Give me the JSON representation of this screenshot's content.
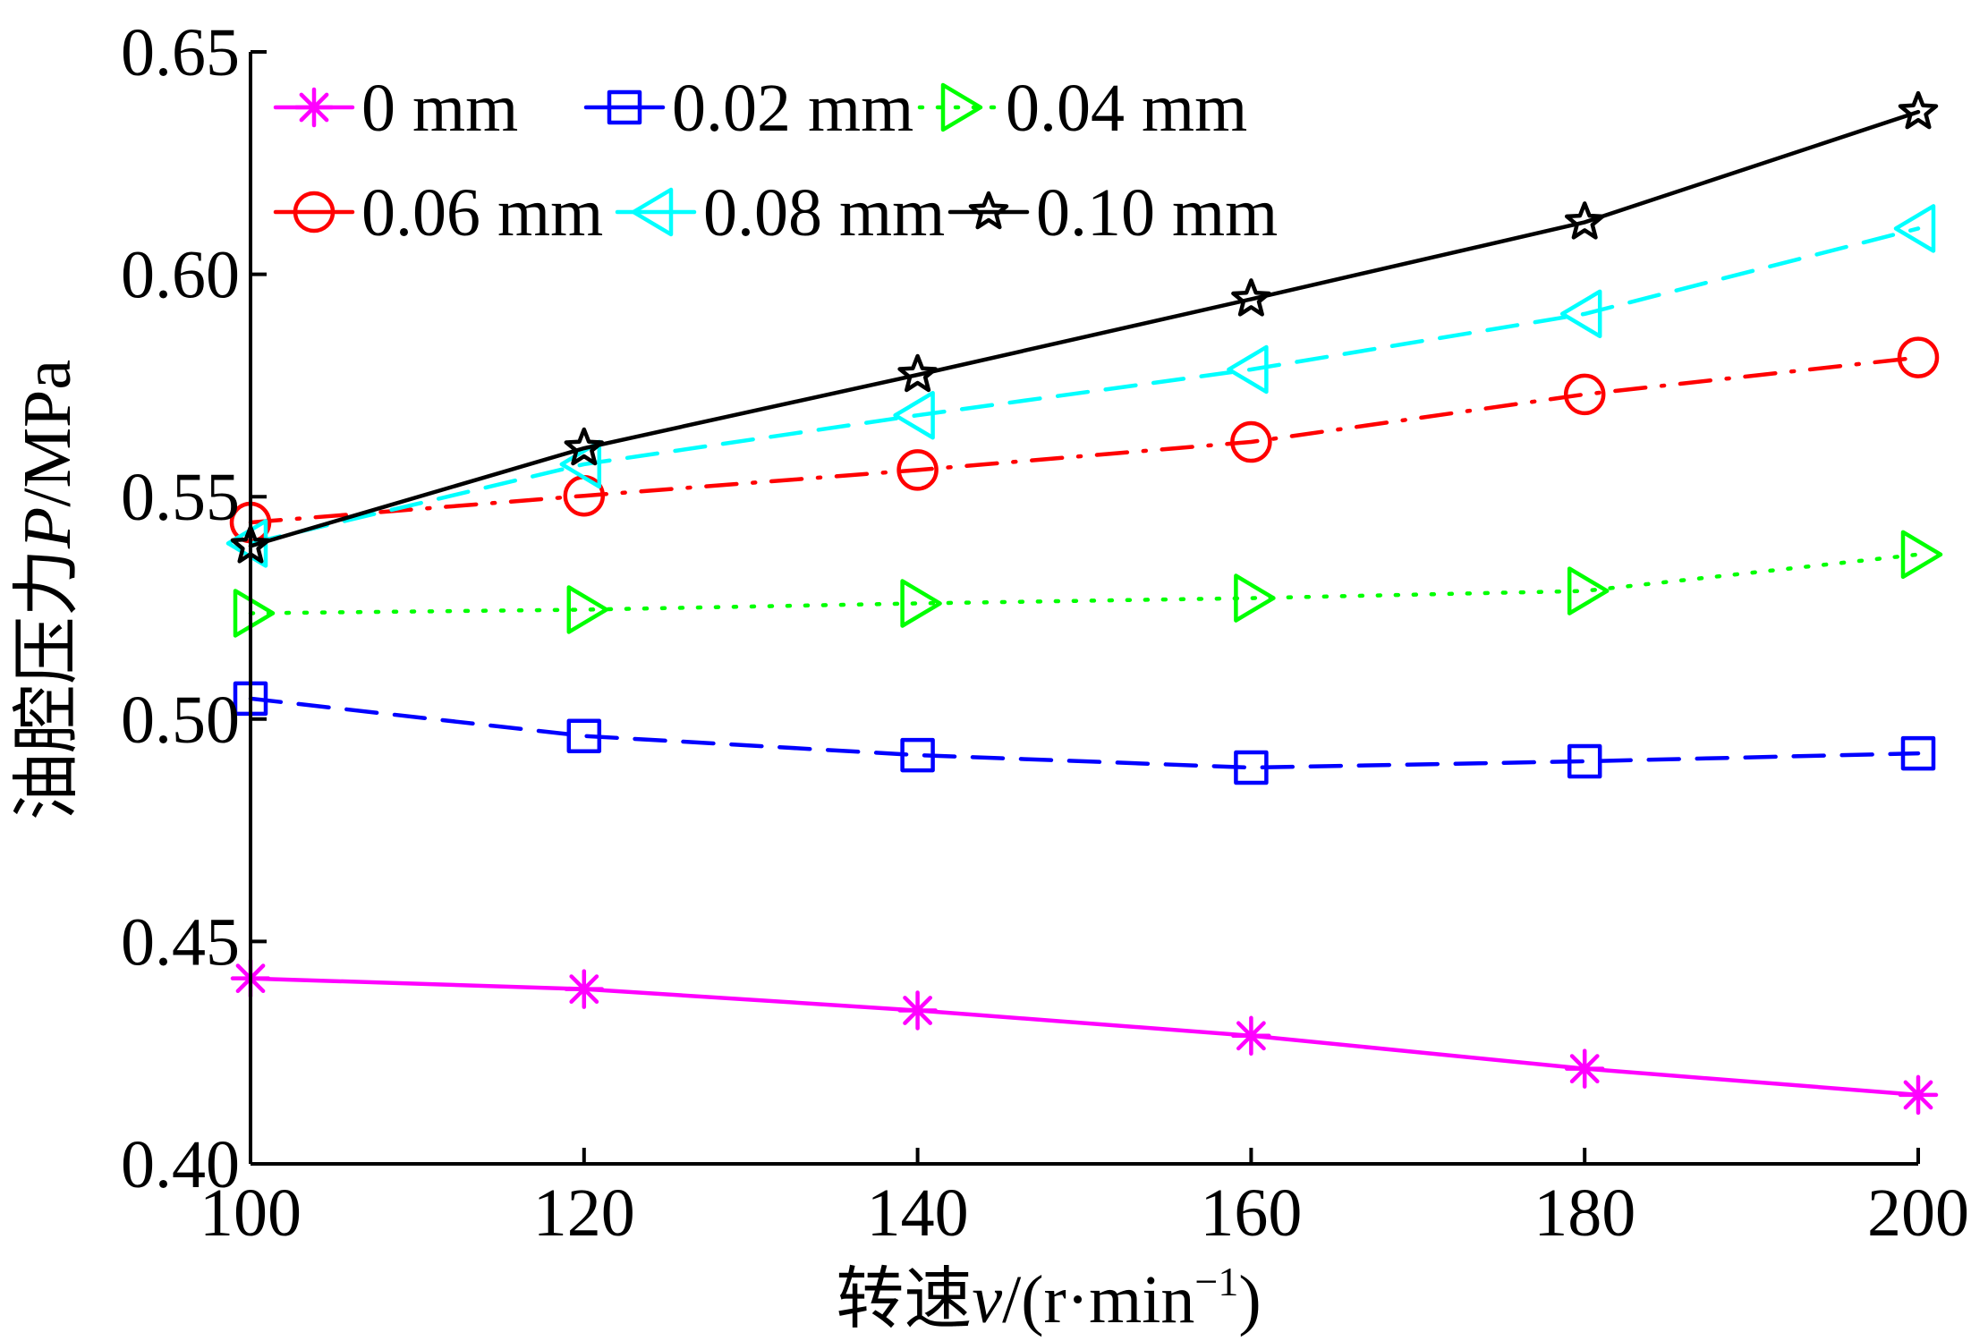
{
  "chart_data": {
    "type": "line",
    "title": "",
    "xlabel": "转速v/(r·min⁻¹)",
    "xlabel_parts": {
      "prefix": "转速",
      "var": "v",
      "unit_open": "/(r·min",
      "sup": "−1",
      "unit_close": ")"
    },
    "ylabel": "油腔压力P/MPa",
    "ylabel_parts": {
      "prefix": "油腔压力",
      "var": "P",
      "unit": "/MPa"
    },
    "x": [
      100,
      120,
      140,
      160,
      180,
      200
    ],
    "xlim": [
      100,
      200
    ],
    "ylim": [
      0.4,
      0.65
    ],
    "xticks": [
      "100",
      "120",
      "140",
      "160",
      "180",
      "200"
    ],
    "yticks": [
      "0.40",
      "0.45",
      "0.50",
      "0.55",
      "0.60",
      "0.65"
    ],
    "grid": false,
    "legend_position": "top-left",
    "series": [
      {
        "name": "0 mm",
        "color": "#ff00ff",
        "marker": "asterisk",
        "line": "solid",
        "values": [
          0.4417,
          0.4393,
          0.4345,
          0.4288,
          0.4214,
          0.4155
        ]
      },
      {
        "name": "0.02 mm",
        "color": "#0000ff",
        "marker": "square",
        "line": "dashed",
        "values": [
          0.5046,
          0.4962,
          0.4919,
          0.4891,
          0.4905,
          0.4923
        ]
      },
      {
        "name": "0.04 mm",
        "color": "#00ff00",
        "marker": "triangle-right",
        "line": "dotted",
        "values": [
          0.5238,
          0.5246,
          0.526,
          0.5272,
          0.5288,
          0.537
        ]
      },
      {
        "name": "0.06 mm",
        "color": "#ff0000",
        "marker": "circle",
        "line": "dashdot",
        "values": [
          0.5442,
          0.5502,
          0.556,
          0.5623,
          0.573,
          0.5813
        ]
      },
      {
        "name": "0.08 mm",
        "color": "#00ffff",
        "marker": "triangle-left",
        "line": "dashed",
        "values": [
          0.5395,
          0.5573,
          0.5683,
          0.5786,
          0.5911,
          0.6103
        ]
      },
      {
        "name": "0.10 mm",
        "color": "#000000",
        "marker": "star",
        "line": "solid",
        "values": [
          0.5389,
          0.5609,
          0.5774,
          0.5944,
          0.6117,
          0.6365
        ]
      }
    ]
  }
}
